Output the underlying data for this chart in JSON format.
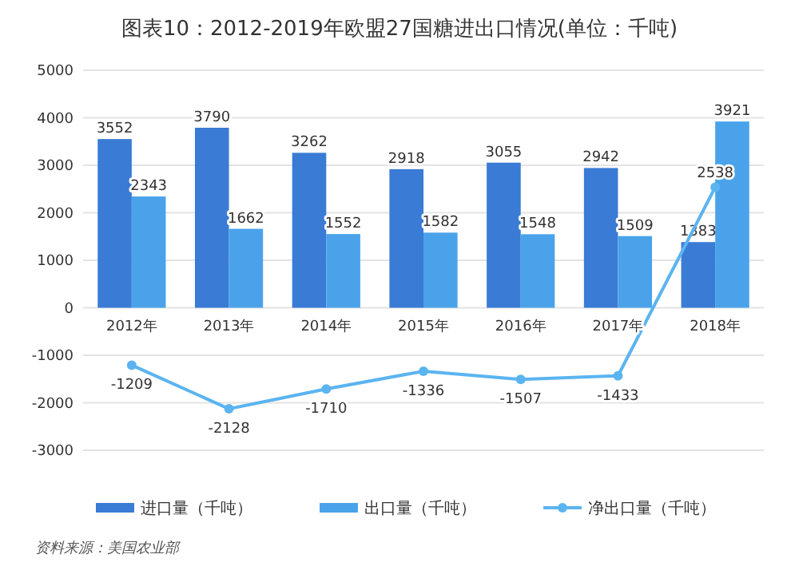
{
  "chart_data": {
    "type": "bar",
    "title": "图表10：2012-2019年欧盟27国糖进出口情况(单位：千吨)",
    "categories": [
      "2012年",
      "2013年",
      "2014年",
      "2015年",
      "2016年",
      "2017年",
      "2018年"
    ],
    "series": [
      {
        "name": "进口量（千吨）",
        "color": "#3a7bd5",
        "values": [
          3552,
          3790,
          3262,
          2918,
          3055,
          2942,
          1383
        ]
      },
      {
        "name": "出口量（千吨）",
        "color": "#4aa3ea",
        "values": [
          2343,
          1662,
          1552,
          1582,
          1548,
          1509,
          3921
        ]
      },
      {
        "name": "净出口量（千吨）",
        "type": "line",
        "color": "#5bb4f0",
        "marker": "circle",
        "values": [
          -1209,
          -2128,
          -1710,
          -1336,
          -1507,
          -1433,
          2538
        ]
      }
    ],
    "ylim": [
      -3000,
      5000
    ],
    "yticks": [
      -3000,
      -2000,
      -1000,
      0,
      1000,
      2000,
      3000,
      4000,
      5000
    ],
    "grid": "y",
    "legend": "bottom",
    "data_labels": true,
    "annotations": [
      "资料来源：美国农业部"
    ]
  }
}
